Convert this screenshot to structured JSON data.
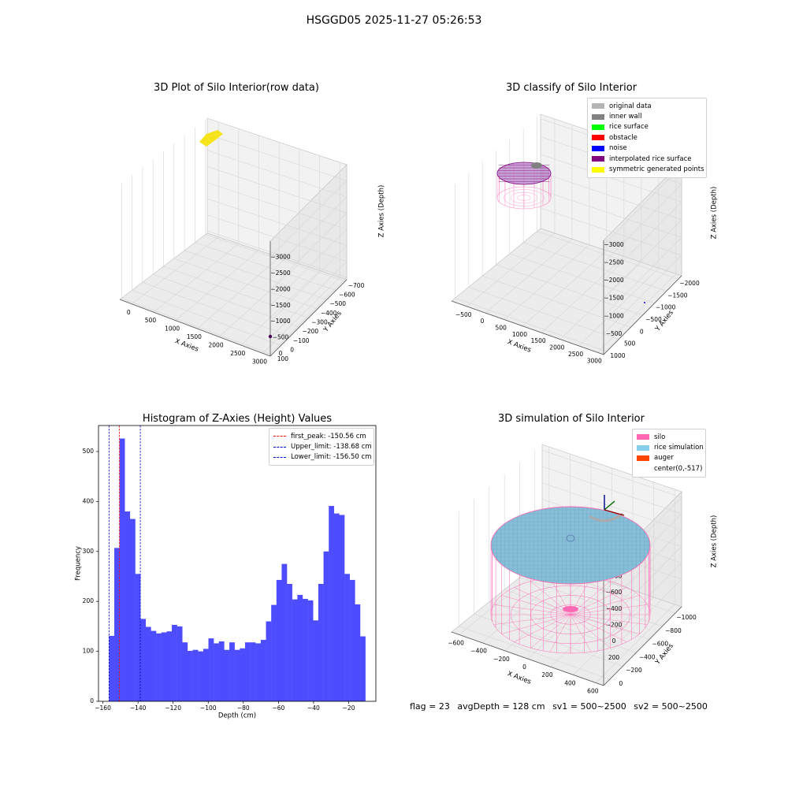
{
  "suptitle": "HSGGD05 2025-11-27 05:26:53",
  "chart_data": [
    {
      "type": "scatter",
      "title": "3D Plot of Silo Interior(row data)",
      "xlabel": "X Axies",
      "ylabel": "Y Axies",
      "zlabel": "Z Axies (Depth)",
      "x_ticks": [
        "0",
        "500",
        "1000",
        "1500",
        "2000",
        "2500",
        "3000"
      ],
      "y_ticks": [
        "100",
        "0",
        "−100",
        "−200",
        "−300",
        "−400",
        "−500",
        "−600",
        "−700"
      ],
      "z_ticks": [
        "0",
        "−500",
        "−1000",
        "−1500",
        "−2000",
        "−2500",
        "−3000"
      ],
      "points_color": "#f5e41b",
      "outlier_color": "#440154"
    },
    {
      "type": "scatter",
      "title": "3D classify of Silo Interior",
      "xlabel": "X Axies",
      "ylabel": "Y Axies",
      "zlabel": "Z Axies (Depth)",
      "x_ticks": [
        "−500",
        "0",
        "500",
        "1000",
        "1500",
        "2000",
        "2500",
        "3000"
      ],
      "y_ticks": [
        "1000",
        "500",
        "0",
        "−500",
        "−1000",
        "−1500",
        "−2000"
      ],
      "z_ticks": [
        "−500",
        "−1000",
        "−1500",
        "−2000",
        "−2500",
        "−3000"
      ],
      "legend": [
        {
          "label": "original data",
          "color": "#b4b4b4"
        },
        {
          "label": "inner wall",
          "color": "#808080"
        },
        {
          "label": "rice surface",
          "color": "#00ff00"
        },
        {
          "label": "obstacle",
          "color": "#ff0000"
        },
        {
          "label": "noise",
          "color": "#0000ff"
        },
        {
          "label": "interpolated rice surface",
          "color": "#800080"
        },
        {
          "label": "symmetric generated points",
          "color": "#ffff00"
        }
      ]
    },
    {
      "type": "bar",
      "title": "Histogram of Z-Axies (Height) Values",
      "xlabel": "Depth (cm)",
      "ylabel": "Frequency",
      "xlim": [
        -162.5,
        -4.5
      ],
      "ylim": [
        0,
        552
      ],
      "x_ticks": [
        -160,
        -140,
        -120,
        -100,
        -80,
        -60,
        -40,
        -20
      ],
      "y_ticks": [
        0,
        100,
        200,
        300,
        400,
        500
      ],
      "bin_start": -156.5,
      "bin_width": 2.98,
      "values": [
        131,
        307,
        526,
        380,
        365,
        255,
        165,
        149,
        141,
        136,
        138,
        140,
        153,
        150,
        118,
        101,
        103,
        100,
        105,
        126,
        116,
        120,
        103,
        118,
        103,
        106,
        118,
        118,
        116,
        123,
        160,
        193,
        243,
        275,
        235,
        204,
        213,
        205,
        202,
        162,
        235,
        300,
        391,
        376,
        373,
        255,
        243,
        194,
        130
      ],
      "bar_color": "#4d4dff",
      "vlines": [
        {
          "label": "first_peak: -150.56 cm",
          "x": -150.56,
          "color": "#ff0000"
        },
        {
          "label": "Upper_limit: -138.68 cm",
          "x": -138.68,
          "color": "#0000cc"
        },
        {
          "label": "Lower_limit: -156.50 cm",
          "x": -156.5,
          "color": "#0000cc"
        }
      ]
    },
    {
      "type": "scatter",
      "title": "3D simulation of Silo Interior",
      "xlabel": "X Axies",
      "ylabel": "Y Axies",
      "zlabel": "Z Axies (Depth)",
      "x_ticks": [
        "−600",
        "−400",
        "−200",
        "0",
        "200",
        "400",
        "600"
      ],
      "y_ticks": [
        "0",
        "−200",
        "−400",
        "−600",
        "−800",
        "−1000"
      ],
      "z_ticks": [
        "200",
        "0",
        "−200",
        "−400",
        "−600",
        "−800"
      ],
      "legend": [
        {
          "label": "silo",
          "color": "#ff69b4"
        },
        {
          "label": "rice simulation",
          "color": "#87ceeb"
        },
        {
          "label": "auger",
          "color": "#ff4500"
        },
        {
          "label": "center(0,-517)",
          "color": ""
        }
      ]
    }
  ],
  "status": {
    "flag": "flag = 23",
    "avg_depth": "avgDepth = 128 cm",
    "sv1": "sv1 = 500~2500",
    "sv2": "sv2 = 500~2500"
  }
}
